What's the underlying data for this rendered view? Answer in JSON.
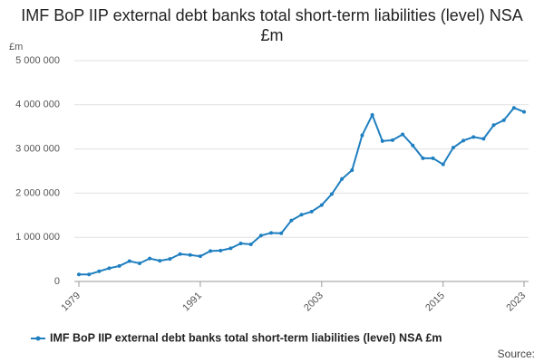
{
  "chart_data": {
    "type": "line",
    "title": "IMF BoP IIP external debt banks total short-term liabilities (level) NSA £m",
    "y_label": "£m",
    "source": "Source:",
    "x": [
      1979,
      1980,
      1981,
      1982,
      1983,
      1984,
      1985,
      1986,
      1987,
      1988,
      1989,
      1990,
      1991,
      1992,
      1993,
      1994,
      1995,
      1996,
      1997,
      1998,
      1999,
      2000,
      2001,
      2002,
      2003,
      2004,
      2005,
      2006,
      2007,
      2008,
      2009,
      2010,
      2011,
      2012,
      2013,
      2014,
      2015,
      2016,
      2017,
      2018,
      2019,
      2020,
      2021,
      2022,
      2023
    ],
    "series": [
      {
        "name": "IMF BoP IIP external debt banks total short-term liabilities (level) NSA £m",
        "color": "#1f7fc0",
        "values": [
          158000,
          160000,
          230000,
          300000,
          350000,
          460000,
          410000,
          520000,
          470000,
          510000,
          620000,
          600000,
          570000,
          690000,
          700000,
          750000,
          860000,
          840000,
          1040000,
          1100000,
          1090000,
          1380000,
          1510000,
          1580000,
          1730000,
          1980000,
          2320000,
          2520000,
          3310000,
          3770000,
          3180000,
          3200000,
          3330000,
          3080000,
          2790000,
          2790000,
          2650000,
          3030000,
          3190000,
          3270000,
          3230000,
          3540000,
          3650000,
          3930000,
          3840000
        ]
      }
    ],
    "xlim": [
      1979,
      2023
    ],
    "xticks": [
      1979,
      1991,
      2003,
      2015,
      2023
    ],
    "ylim": [
      0,
      5000000
    ],
    "yticks": [
      0,
      {
        "value": 1000000,
        "label": "1 000 000"
      },
      {
        "value": 2000000,
        "label": "2 000 000"
      },
      {
        "value": 3000000,
        "label": "3 000 000"
      },
      {
        "value": 4000000,
        "label": "4 000 000"
      },
      {
        "value": 5000000,
        "label": "5 000 000"
      }
    ],
    "grid": true
  }
}
